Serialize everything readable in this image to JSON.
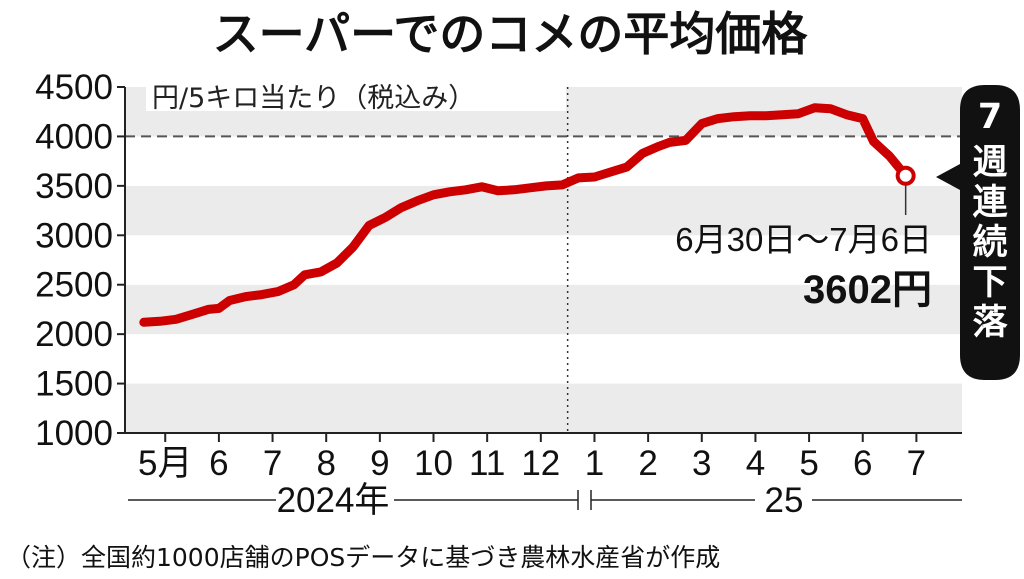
{
  "title": "スーパーでのコメの平均価格",
  "unit_label": "円/5キロ当たり（税込み）",
  "badge": {
    "number": "7",
    "text": "週連続下落"
  },
  "annotation": {
    "date": "6月30日〜7月6日",
    "price": "3602円"
  },
  "years": {
    "left": "2024年",
    "right": "25"
  },
  "note": "（注）全国約1000店舗のPOSデータに基づき農林水産省が作成",
  "colors": {
    "line": "#cc0000",
    "band": "#ebebeb",
    "badge_bg": "#111111"
  },
  "chart_data": {
    "type": "line",
    "title": "スーパーでのコメの平均価格",
    "ylabel": "円/5キロ当たり（税込み）",
    "xlabel": "",
    "ylim": [
      1000,
      4500
    ],
    "y_ticks": [
      1000,
      1500,
      2000,
      2500,
      3000,
      3500,
      4000,
      4500
    ],
    "x_tick_labels": [
      "5月",
      "6",
      "7",
      "8",
      "9",
      "10",
      "11",
      "12",
      "1",
      "2",
      "3",
      "4",
      "5",
      "6",
      "7"
    ],
    "x_tick_month": [
      5,
      6,
      7,
      8,
      9,
      10,
      11,
      12,
      13,
      14,
      15,
      16,
      17,
      18,
      19
    ],
    "year_labels": [
      "2024年",
      "25"
    ],
    "year_divider_month": 12.5,
    "reference_line": 4000,
    "grid": "alternating horizontal bands",
    "series": [
      {
        "values": [
          [
            4.6,
            2120
          ],
          [
            4.9,
            2130
          ],
          [
            5.2,
            2150
          ],
          [
            5.5,
            2200
          ],
          [
            5.8,
            2250
          ],
          [
            6.0,
            2260
          ],
          [
            6.2,
            2340
          ],
          [
            6.5,
            2380
          ],
          [
            6.8,
            2400
          ],
          [
            7.1,
            2430
          ],
          [
            7.4,
            2500
          ],
          [
            7.6,
            2600
          ],
          [
            7.9,
            2630
          ],
          [
            8.2,
            2720
          ],
          [
            8.5,
            2880
          ],
          [
            8.8,
            3100
          ],
          [
            9.1,
            3180
          ],
          [
            9.4,
            3280
          ],
          [
            9.7,
            3350
          ],
          [
            10.0,
            3410
          ],
          [
            10.3,
            3440
          ],
          [
            10.6,
            3460
          ],
          [
            10.9,
            3490
          ],
          [
            11.2,
            3450
          ],
          [
            11.5,
            3460
          ],
          [
            11.8,
            3480
          ],
          [
            12.1,
            3500
          ],
          [
            12.4,
            3510
          ],
          [
            12.7,
            3580
          ],
          [
            13.0,
            3590
          ],
          [
            13.3,
            3640
          ],
          [
            13.6,
            3690
          ],
          [
            13.9,
            3830
          ],
          [
            14.2,
            3900
          ],
          [
            14.4,
            3940
          ],
          [
            14.7,
            3960
          ],
          [
            15.0,
            4130
          ],
          [
            15.3,
            4180
          ],
          [
            15.6,
            4200
          ],
          [
            15.9,
            4210
          ],
          [
            16.2,
            4210
          ],
          [
            16.5,
            4220
          ],
          [
            16.8,
            4230
          ],
          [
            17.1,
            4290
          ],
          [
            17.4,
            4280
          ],
          [
            17.7,
            4220
          ],
          [
            18.0,
            4180
          ],
          [
            18.2,
            3950
          ],
          [
            18.5,
            3800
          ],
          [
            18.8,
            3602
          ]
        ]
      }
    ],
    "highlight_point": {
      "x": 18.8,
      "y": 3602,
      "label": "3602円",
      "date": "6月30日〜7月6日"
    }
  }
}
